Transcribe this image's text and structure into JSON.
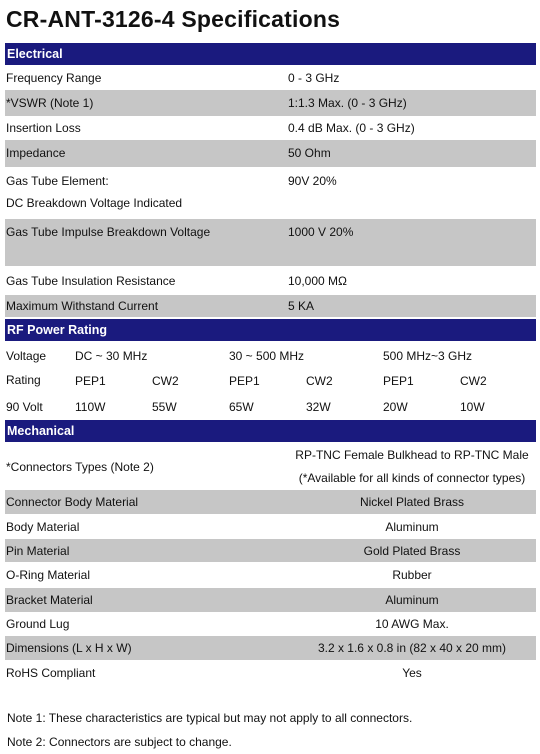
{
  "title": "CR-ANT-3126-4 Specifications",
  "electrical": {
    "header": "Electrical",
    "rows": [
      {
        "label": "Frequency Range",
        "value": "0 - 3 GHz"
      },
      {
        "label": "*VSWR (Note 1)",
        "value": "1:1.3 Max. (0 - 3 GHz)"
      },
      {
        "label": "Insertion Loss",
        "value": "0.4 dB Max. (0 - 3 GHz)"
      },
      {
        "label": "Impedance",
        "value": "50 Ohm"
      },
      {
        "label": "Gas Tube Element:",
        "label2": "DC Breakdown Voltage Indicated",
        "value": "90V 20%"
      },
      {
        "label": "Gas Tube Impulse Breakdown Voltage",
        "value": "1000 V 20%"
      },
      {
        "label": "Gas Tube Insulation Resistance",
        "value": "10,000 MΩ"
      },
      {
        "label": "Maximum Withstand Current",
        "value": "5 KA"
      }
    ]
  },
  "rf": {
    "header": "RF Power Rating",
    "row1": [
      "Voltage",
      "DC ~ 30 MHz",
      "30 ~ 500 MHz",
      "500 MHz~3 GHz"
    ],
    "row2": [
      "Rating",
      "PEP1",
      "CW2",
      "PEP1",
      "CW2",
      "PEP1",
      "CW2"
    ],
    "row3": [
      "90 Volt",
      "110W",
      "55W",
      "65W",
      "32W",
      "20W",
      "10W"
    ]
  },
  "mechanical": {
    "header": "Mechanical",
    "connectors": {
      "label": "*Connectors Types (Note 2)",
      "value": "RP-TNC Female Bulkhead to RP-TNC Male",
      "value2": "(*Available for all kinds of connector types)"
    },
    "rows": [
      {
        "label": "Connector Body Material",
        "value": "Nickel Plated Brass"
      },
      {
        "label": "Body Material",
        "value": "Aluminum"
      },
      {
        "label": "Pin Material",
        "value": "Gold Plated Brass"
      },
      {
        "label": "O-Ring Material",
        "value": "Rubber"
      },
      {
        "label": "Bracket Material",
        "value": "Aluminum"
      },
      {
        "label": "Ground Lug",
        "value": "10 AWG Max."
      },
      {
        "label": "Dimensions (L x H x W)",
        "value": "3.2 x 1.6 x 0.8 in (82 x 40 x 20 mm)"
      },
      {
        "label": "RoHS Compliant",
        "value": "Yes"
      }
    ]
  },
  "notes": [
    "Note 1: These characteristics are typical but may not apply to all connectors.",
    "Note 2: Connectors are subject to change."
  ]
}
